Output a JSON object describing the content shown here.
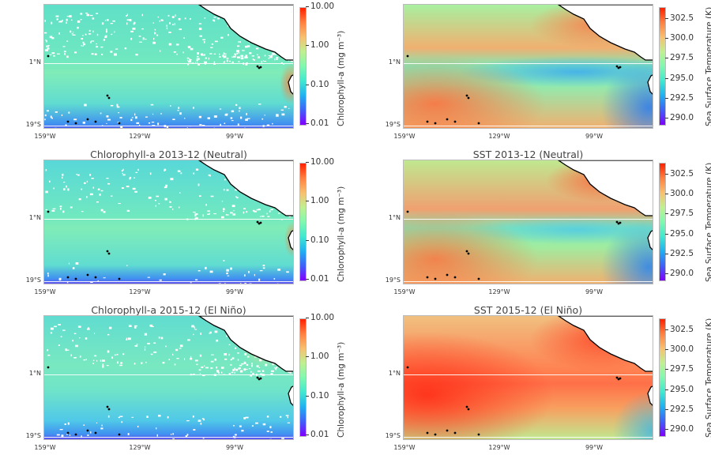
{
  "chart_data": [
    {
      "type": "heatmap",
      "row": 0,
      "col": 0,
      "title": "",
      "colorbar_label": "Chlorophyll-a (mg m⁻³)",
      "colorbar_ticks": [
        "10.00",
        "1.00",
        "0.10",
        "0.01"
      ],
      "colorbar_scale": "log",
      "colorbar_range": [
        0.01,
        10
      ],
      "colormap": "rainbow",
      "x_ticks": [
        "159°W",
        "129°W",
        "99°W"
      ],
      "y_ticks": [
        "1°N",
        "19°S"
      ],
      "kind": "chl",
      "state": "row1"
    },
    {
      "type": "heatmap",
      "row": 0,
      "col": 1,
      "title": "",
      "colorbar_label": "Sea Surface Temperature (K)",
      "colorbar_ticks": [
        "302.5",
        "300.0",
        "297.5",
        "295.0",
        "292.5",
        "290.0"
      ],
      "colorbar_range": [
        289.3,
        304.0
      ],
      "colormap": "rainbow",
      "x_ticks": [
        "159°W",
        "129°W",
        "99°W"
      ],
      "y_ticks": [
        "1°N",
        "19°S"
      ],
      "kind": "sst",
      "state": "row1"
    },
    {
      "type": "heatmap",
      "row": 1,
      "col": 0,
      "title": "Chlorophyll-a 2013-12 (Neutral)",
      "colorbar_label": "Chlorophyll-a (mg m⁻³)",
      "colorbar_ticks": [
        "10.00",
        "1.00",
        "0.10",
        "0.01"
      ],
      "colorbar_scale": "log",
      "colorbar_range": [
        0.01,
        10
      ],
      "colormap": "rainbow",
      "x_ticks": [
        "159°W",
        "129°W",
        "99°W"
      ],
      "y_ticks": [
        "1°N",
        "19°S"
      ],
      "kind": "chl",
      "state": "neutral"
    },
    {
      "type": "heatmap",
      "row": 1,
      "col": 1,
      "title": "SST 2013-12 (Neutral)",
      "colorbar_label": "Sea Surface Temperature (K)",
      "colorbar_ticks": [
        "302.5",
        "300.0",
        "297.5",
        "295.0",
        "292.5",
        "290.0"
      ],
      "colorbar_range": [
        289.3,
        304.0
      ],
      "colormap": "rainbow",
      "x_ticks": [
        "159°W",
        "129°W",
        "99°W"
      ],
      "y_ticks": [
        "1°N",
        "19°S"
      ],
      "kind": "sst",
      "state": "neutral"
    },
    {
      "type": "heatmap",
      "row": 2,
      "col": 0,
      "title": "Chlorophyll-a 2015-12 (El Niño)",
      "colorbar_label": "Chlorophyll-a (mg m⁻³)",
      "colorbar_ticks": [
        "10.00",
        "1.00",
        "0.10",
        "0.01"
      ],
      "colorbar_scale": "log",
      "colorbar_range": [
        0.01,
        10
      ],
      "colormap": "rainbow",
      "x_ticks": [
        "159°W",
        "129°W",
        "99°W"
      ],
      "y_ticks": [
        "1°N",
        "19°S"
      ],
      "kind": "chl",
      "state": "elnino"
    },
    {
      "type": "heatmap",
      "row": 2,
      "col": 1,
      "title": "SST 2015-12 (El Niño)",
      "colorbar_label": "Sea Surface Temperature (K)",
      "colorbar_ticks": [
        "302.5",
        "300.0",
        "297.5",
        "295.0",
        "292.5",
        "290.0"
      ],
      "colorbar_range": [
        289.3,
        304.0
      ],
      "colormap": "rainbow",
      "x_ticks": [
        "159°W",
        "129°W",
        "99°W"
      ],
      "y_ticks": [
        "1°N",
        "19°S"
      ],
      "kind": "sst",
      "state": "elnino"
    }
  ],
  "colors": {
    "land": "#ffffff",
    "coast": "#000000",
    "gridline": "#ffffff"
  }
}
